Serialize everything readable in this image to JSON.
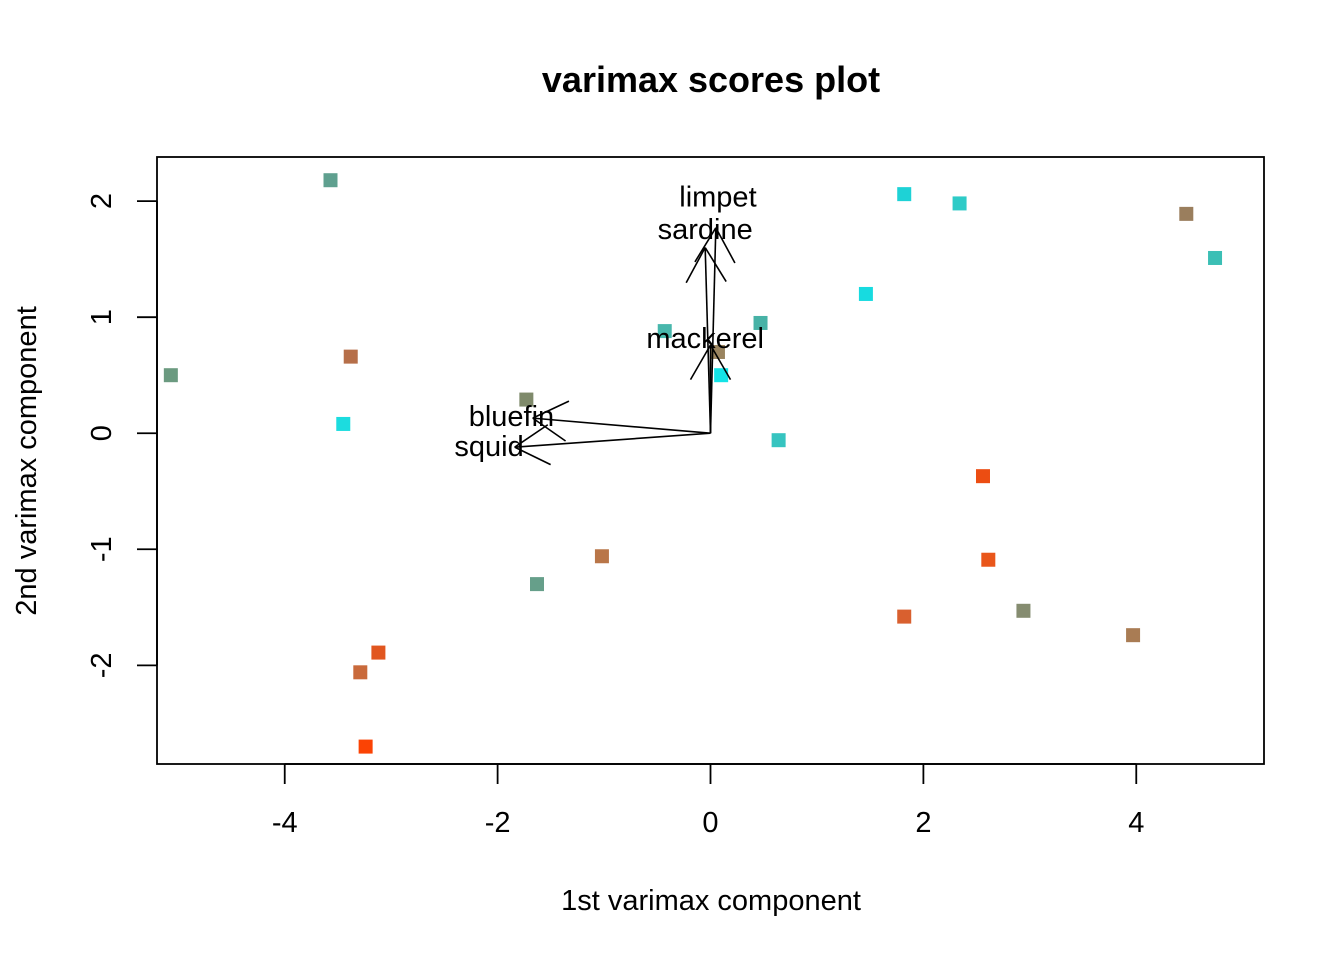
{
  "chart_data": {
    "type": "scatter",
    "title": "varimax scores plot",
    "xlabel": "1st varimax component",
    "ylabel": "2nd varimax component",
    "xlim": [
      -5.2,
      5.2
    ],
    "ylim": [
      -2.85,
      2.38
    ],
    "xticks": [
      -4,
      -2,
      0,
      2,
      4
    ],
    "yticks": [
      -2,
      -1,
      0,
      1,
      2
    ],
    "xtick_labels": [
      "-4",
      "-2",
      "0",
      "2",
      "4"
    ],
    "ytick_labels": [
      "-2",
      "-1",
      "0",
      "1",
      "2"
    ],
    "grid": false,
    "points": [
      {
        "x": -3.57,
        "y": 2.18,
        "color": "#5fa08f"
      },
      {
        "x": 1.82,
        "y": 2.06,
        "color": "#1ed2d6"
      },
      {
        "x": 2.34,
        "y": 1.98,
        "color": "#2ecbc7"
      },
      {
        "x": 4.47,
        "y": 1.89,
        "color": "#9a7e5d"
      },
      {
        "x": 4.74,
        "y": 1.51,
        "color": "#3bbfb5"
      },
      {
        "x": 1.46,
        "y": 1.2,
        "color": "#17dbe0"
      },
      {
        "x": 0.47,
        "y": 0.95,
        "color": "#47b2a6"
      },
      {
        "x": -0.43,
        "y": 0.88,
        "color": "#48b7ac"
      },
      {
        "x": 0.07,
        "y": 0.7,
        "color": "#9a845f"
      },
      {
        "x": 0.1,
        "y": 0.5,
        "color": "#14e3e6"
      },
      {
        "x": -3.38,
        "y": 0.66,
        "color": "#b66f49"
      },
      {
        "x": -5.07,
        "y": 0.5,
        "color": "#6b9a80"
      },
      {
        "x": -1.73,
        "y": 0.29,
        "color": "#7f8a6b"
      },
      {
        "x": -3.45,
        "y": 0.08,
        "color": "#1cdcdf"
      },
      {
        "x": 0.64,
        "y": -0.06,
        "color": "#36c4c0"
      },
      {
        "x": 2.56,
        "y": -0.37,
        "color": "#ec4d12"
      },
      {
        "x": -1.02,
        "y": -1.06,
        "color": "#b97648"
      },
      {
        "x": 2.61,
        "y": -1.09,
        "color": "#e9561a"
      },
      {
        "x": -1.63,
        "y": -1.3,
        "color": "#669f8a"
      },
      {
        "x": 2.94,
        "y": -1.53,
        "color": "#858c70"
      },
      {
        "x": 1.82,
        "y": -1.58,
        "color": "#d9602f"
      },
      {
        "x": 3.97,
        "y": -1.74,
        "color": "#a97c54"
      },
      {
        "x": -3.12,
        "y": -1.89,
        "color": "#e1561f"
      },
      {
        "x": -3.29,
        "y": -2.06,
        "color": "#c96a3b"
      },
      {
        "x": -3.24,
        "y": -2.7,
        "color": "#fb4304"
      }
    ],
    "vectors": [
      {
        "name": "limpet",
        "x": 0.05,
        "y": 1.77
      },
      {
        "name": "sardine",
        "x": -0.05,
        "y": 1.6
      },
      {
        "name": "mackerel",
        "x": 0.0,
        "y": 0.76
      },
      {
        "name": "bluefin",
        "x": -1.67,
        "y": 0.13
      },
      {
        "name": "squid",
        "x": -1.84,
        "y": -0.12
      }
    ],
    "vector_labels": [
      {
        "text": "limpet",
        "x": 0.07,
        "y": 2.03
      },
      {
        "text": "sardine",
        "x": -0.05,
        "y": 1.75
      },
      {
        "text": "mackerel",
        "x": -0.05,
        "y": 0.81
      },
      {
        "text": "bluefin",
        "x": -1.87,
        "y": 0.14
      },
      {
        "text": "squid",
        "x": -2.08,
        "y": -0.12
      }
    ]
  }
}
